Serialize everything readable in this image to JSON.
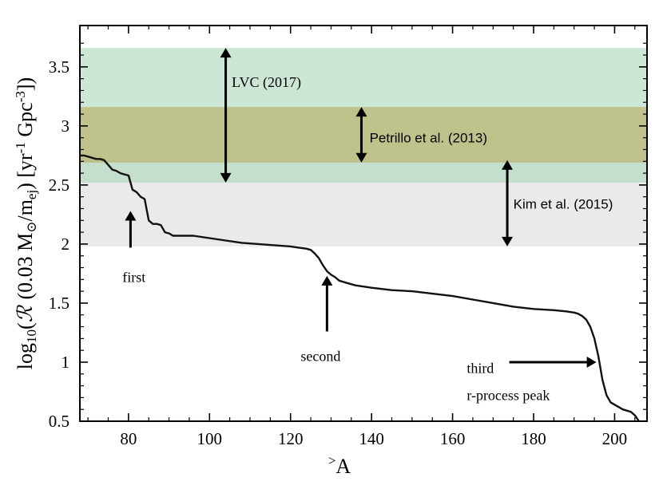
{
  "chart_data": {
    "type": "line",
    "xlabel_prefix": ">",
    "xlabel_main": "A",
    "ylabel": {
      "lead": "log",
      "sub10": "10",
      "paren_open": "(",
      "rate_symbol": "ℛ",
      "mass_part": "(0.03 M",
      "sun": "⊙",
      "div": "/m",
      "sub_ej": "ej",
      "bracket_open": ")  [yr",
      "exp_m1": "-1",
      "gpc": " Gpc",
      "exp_m3": "-3",
      "bracket_close": "])"
    },
    "xlim": [
      68,
      208
    ],
    "ylim": [
      0.5,
      3.85
    ],
    "xticks": [
      80,
      100,
      120,
      140,
      160,
      180,
      200
    ],
    "xtick_labels": [
      "80",
      "100",
      "120",
      "140",
      "160",
      "180",
      "200"
    ],
    "yticks": [
      0.5,
      1,
      1.5,
      2,
      2.5,
      3,
      3.5
    ],
    "ytick_labels": [
      "0.5",
      "1",
      "1.5",
      "2",
      "2.5",
      "3",
      "3.5"
    ],
    "bands": [
      {
        "name": "Kim et al. (2015)",
        "y_low": 1.98,
        "y_high": 2.71,
        "color": "#e6e6e6",
        "opacity": 0.85
      },
      {
        "name": "LVC (2017)",
        "y_low": 2.52,
        "y_high": 3.66,
        "color": "#aad7bb",
        "opacity": 0.6
      },
      {
        "name": "Petrillo et al. (2013)",
        "y_low": 2.69,
        "y_high": 3.16,
        "color": "#b5a64e",
        "opacity": 0.55
      }
    ],
    "series": [
      {
        "name": "log10 R",
        "x": [
          68,
          69,
          70,
          71,
          72,
          73,
          74,
          75,
          76,
          77,
          78,
          79,
          80,
          81,
          82,
          83,
          84,
          85,
          86,
          87,
          88,
          89,
          90,
          91,
          92,
          94,
          96,
          98,
          100,
          104,
          108,
          112,
          116,
          120,
          122,
          124,
          125,
          126,
          127,
          128,
          129,
          130,
          131,
          132,
          134,
          136,
          140,
          145,
          150,
          155,
          160,
          165,
          170,
          175,
          180,
          185,
          188,
          190,
          191,
          192,
          193,
          194,
          195,
          196,
          197,
          198,
          199,
          200,
          201,
          202,
          203,
          204,
          205,
          206
        ],
        "y": [
          2.75,
          2.75,
          2.74,
          2.73,
          2.72,
          2.72,
          2.71,
          2.67,
          2.63,
          2.62,
          2.6,
          2.59,
          2.58,
          2.46,
          2.44,
          2.4,
          2.38,
          2.2,
          2.17,
          2.17,
          2.16,
          2.1,
          2.09,
          2.07,
          2.07,
          2.07,
          2.07,
          2.06,
          2.05,
          2.03,
          2.01,
          2.0,
          1.99,
          1.98,
          1.97,
          1.96,
          1.95,
          1.92,
          1.88,
          1.82,
          1.77,
          1.74,
          1.72,
          1.69,
          1.67,
          1.65,
          1.63,
          1.61,
          1.6,
          1.58,
          1.56,
          1.53,
          1.5,
          1.47,
          1.45,
          1.44,
          1.43,
          1.42,
          1.41,
          1.39,
          1.36,
          1.3,
          1.2,
          1.05,
          0.85,
          0.72,
          0.66,
          0.64,
          0.62,
          0.6,
          0.59,
          0.58,
          0.55,
          0.5
        ]
      }
    ],
    "annotations": [
      {
        "id": "lvc",
        "label": "LVC (2017)",
        "kind": "double-arrow",
        "x": 104,
        "y_from": 2.52,
        "y_to": 3.66,
        "text_x": 105.5,
        "text_y": 3.37
      },
      {
        "id": "petrillo",
        "label": "Petrillo et al. (2013)",
        "kind": "double-arrow",
        "x": 137.5,
        "y_from": 2.69,
        "y_to": 3.16,
        "text_x": 139.5,
        "text_y": 2.9
      },
      {
        "id": "kim",
        "label": "Kim et al. (2015)",
        "kind": "double-arrow",
        "x": 173.5,
        "y_from": 1.98,
        "y_to": 2.71,
        "text_x": 175,
        "text_y": 2.34
      },
      {
        "id": "first",
        "label": "first",
        "kind": "arrow-up",
        "x": 80.5,
        "y_from": 1.97,
        "y_to": 2.28,
        "text_x": 78.5,
        "text_y": 1.72
      },
      {
        "id": "second",
        "label": "second",
        "kind": "arrow-up",
        "x": 129,
        "y_from": 1.26,
        "y_to": 1.73,
        "text_x": 122.5,
        "text_y": 1.05
      },
      {
        "id": "third",
        "label": "third",
        "kind": "arrow-right",
        "x_from": 174,
        "x_to": 195.5,
        "y": 1.0,
        "text_x": 163.5,
        "text_y": 0.95
      },
      {
        "id": "third2",
        "label": "r-process peak",
        "kind": "text",
        "text_x": 163.5,
        "text_y": 0.72
      }
    ]
  }
}
